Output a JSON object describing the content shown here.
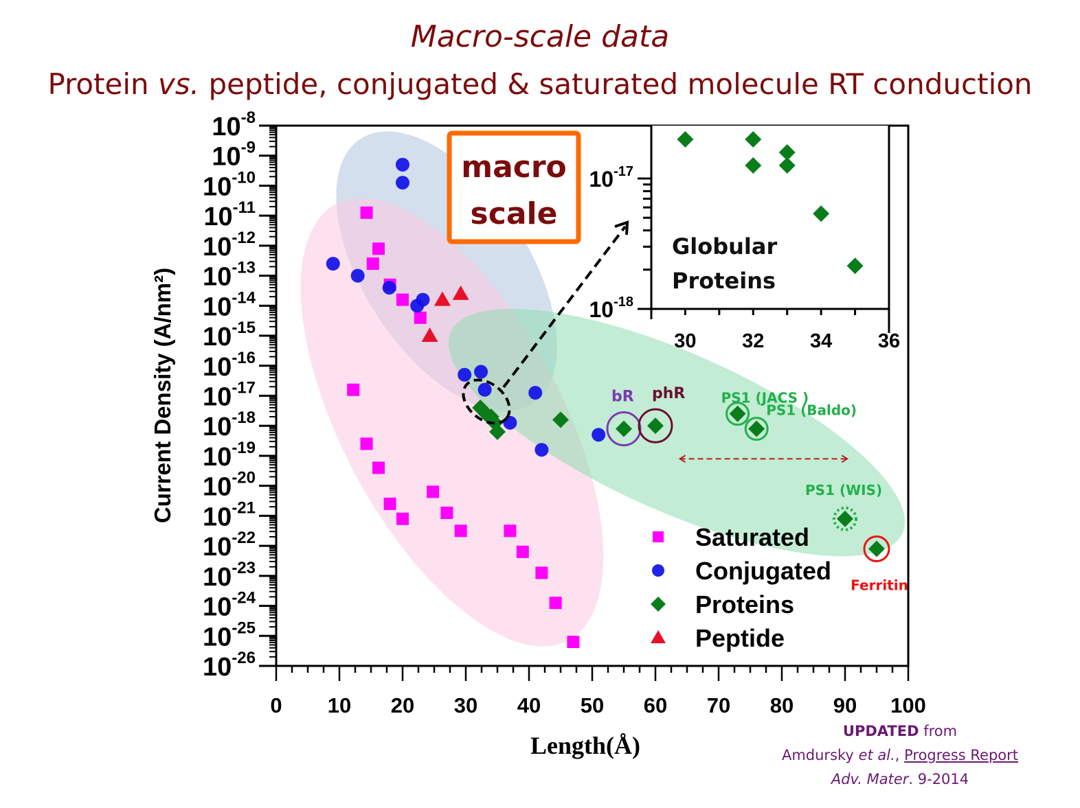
{
  "header": {
    "title": "Macro-scale data",
    "subtitle_part1": "Protein ",
    "subtitle_vs": "vs.",
    "subtitle_part2": " peptide, conjugated & saturated molecule RT conduction"
  },
  "callout_box": {
    "line1": "macro",
    "line2": "scale",
    "border_color": "#ff6a00",
    "text_color": "#7b0c0c"
  },
  "credit": {
    "updated": "UPDATED",
    "from": " from",
    "author": "Amdursky ",
    "etal": "et al.",
    "comma": ", ",
    "report": "Progress Report",
    "journal": "Adv. Mater",
    "date": ". 9-2014"
  },
  "chart_data": [
    {
      "type": "scatter",
      "title": "Macro-scale data",
      "xlabel": "Length(Å)",
      "ylabel": "Current Density (A/nm²)",
      "xlim": [
        0,
        100
      ],
      "ylim_log10": [
        -26,
        -8
      ],
      "xscale": "linear",
      "yscale": "log",
      "x_ticks": [
        "0",
        "10",
        "20",
        "30",
        "40",
        "50",
        "60",
        "70",
        "80",
        "90",
        "100"
      ],
      "y_ticks": [
        "-8",
        "-9",
        "-10",
        "-11",
        "-12",
        "-13",
        "-14",
        "-15",
        "-16",
        "-17",
        "-18",
        "-19",
        "-20",
        "-21",
        "-22",
        "-23",
        "-24",
        "-25",
        "-26"
      ],
      "legend_position": "lower-right",
      "legend": [
        "Saturated",
        "Conjugated",
        "Proteins",
        "Peptide"
      ],
      "colors": {
        "Saturated": "#ff00ff",
        "Conjugated": "#1010e8",
        "Proteins": "#0a7d1a",
        "Peptide": "#e8102a"
      },
      "series": [
        {
          "name": "Saturated",
          "marker": "square",
          "points": [
            [
              14.3,
              -10.9
            ],
            [
              16.2,
              -12.1
            ],
            [
              15.3,
              -12.6
            ],
            [
              18.0,
              -13.3
            ],
            [
              20.0,
              -13.8
            ],
            [
              22.8,
              -14.4
            ],
            [
              12.2,
              -16.8
            ],
            [
              14.3,
              -18.6
            ],
            [
              16.2,
              -19.4
            ],
            [
              24.8,
              -20.2
            ],
            [
              18.0,
              -20.6
            ],
            [
              27.0,
              -20.9
            ],
            [
              20.0,
              -21.1
            ],
            [
              29.2,
              -21.5
            ],
            [
              37.0,
              -21.5
            ],
            [
              39.0,
              -22.2
            ],
            [
              42.0,
              -22.9
            ],
            [
              44.2,
              -23.9
            ],
            [
              47.0,
              -25.2
            ]
          ]
        },
        {
          "name": "Conjugated",
          "marker": "circle",
          "points": [
            [
              20.0,
              -9.3
            ],
            [
              20.0,
              -9.9
            ],
            [
              9.0,
              -12.6
            ],
            [
              12.9,
              -13.0
            ],
            [
              17.9,
              -13.4
            ],
            [
              23.2,
              -13.8
            ],
            [
              22.3,
              -14.0
            ],
            [
              29.8,
              -16.3
            ],
            [
              32.4,
              -16.2
            ],
            [
              33.0,
              -16.8
            ],
            [
              41.0,
              -16.9
            ],
            [
              37.0,
              -17.9
            ],
            [
              51.0,
              -18.3
            ],
            [
              42.0,
              -18.8
            ]
          ]
        },
        {
          "name": "Proteins",
          "marker": "diamond",
          "points": [
            [
              32.3,
              -17.4
            ],
            [
              33.2,
              -17.6
            ],
            [
              34.0,
              -17.7
            ],
            [
              34.6,
              -17.9
            ],
            [
              35.0,
              -18.2
            ],
            [
              45.0,
              -17.8
            ],
            [
              55.0,
              -18.1
            ],
            [
              60.0,
              -18.0
            ],
            [
              73.0,
              -17.6
            ],
            [
              76.0,
              -18.1
            ],
            [
              90.0,
              -21.1
            ],
            [
              95.0,
              -22.1
            ]
          ]
        },
        {
          "name": "Peptide",
          "marker": "triangle",
          "points": [
            [
              26.3,
              -13.8
            ],
            [
              29.2,
              -13.6
            ],
            [
              24.3,
              -15.0
            ]
          ]
        }
      ],
      "annotations": [
        {
          "text": "bR",
          "color": "#7b3ab0",
          "point": [
            55.0,
            -18.1
          ],
          "ring": "solid"
        },
        {
          "text": "phR",
          "color": "#6a1030",
          "point": [
            60.0,
            -18.0
          ],
          "ring": "solid"
        },
        {
          "text": "PS1 (JACS )",
          "color": "#22b04a",
          "point": [
            73.0,
            -17.6
          ],
          "ring": "solid"
        },
        {
          "text": "PS1 (Baldo)",
          "color": "#22b04a",
          "point": [
            76.0,
            -18.1
          ],
          "ring": "solid"
        },
        {
          "text": "PS1 (WIS)",
          "color": "#22b04a",
          "point": [
            90.0,
            -21.1
          ],
          "ring": "dotted"
        },
        {
          "text": "Ferritin",
          "color": "#ee1111",
          "point": [
            95.0,
            -22.1
          ],
          "ring": "solid"
        }
      ],
      "double_arrow": {
        "from": [
          63,
          -19.1
        ],
        "to": [
          91,
          -19.1
        ],
        "color": "#b02020"
      }
    },
    {
      "type": "scatter",
      "title": "Globular Proteins (inset)",
      "annotation": [
        "Globular",
        "Proteins"
      ],
      "xlim": [
        29,
        36
      ],
      "x_ticks": [
        "30",
        "32",
        "34",
        "36"
      ],
      "y_ticks": [
        "-17",
        "-18"
      ],
      "yscale": "log",
      "ylim_log10": [
        -18,
        -16.65
      ],
      "series": [
        {
          "name": "Proteins",
          "marker": "diamond",
          "points": [
            [
              30,
              -16.7
            ],
            [
              32,
              -16.7
            ],
            [
              33,
              -16.8
            ],
            [
              32,
              -16.9
            ],
            [
              33,
              -16.9
            ],
            [
              34,
              -17.27
            ],
            [
              35,
              -17.67
            ]
          ]
        }
      ]
    }
  ]
}
